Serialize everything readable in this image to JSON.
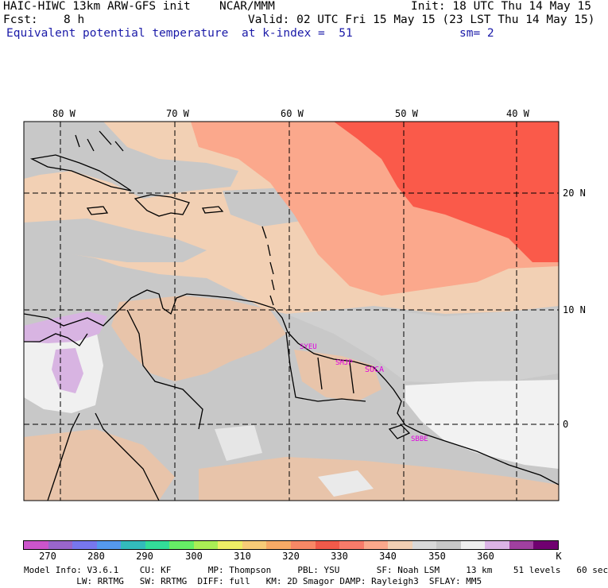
{
  "header": {
    "model": "HAIC-HIWC 13km ARW-GFS init",
    "org": "NCAR/MMM",
    "init": "Init: 18 UTC Thu 14 May 15",
    "fcst_label": "Fcst:",
    "fcst_value": "8 h",
    "valid": "Valid: 02 UTC Fri 15 May 15 (23 LST Thu 14 May 15)",
    "field": "Equivalent potential temperature",
    "level": "at k-index =  51",
    "smooth": "sm= 2"
  },
  "map": {
    "lon_labels": [
      "80 W",
      "70 W",
      "60 W",
      "50 W",
      "40 W"
    ],
    "lat_labels": [
      "20 N",
      "10 N",
      "0"
    ],
    "stations": [
      "SYEU",
      "SMJP",
      "SOCA",
      "SBBE"
    ],
    "colors": {
      "land_gray": "#c8c8c8",
      "tan": "#f2d0b4",
      "salmon": "#fba88c",
      "red": "#fa5a4a",
      "white": "#f2f2f2",
      "lavender": "#d8b4e2",
      "station": "#e000e0"
    }
  },
  "colorbar": {
    "colors": [
      "#cc55cc",
      "#9966cc",
      "#7777ee",
      "#5599ee",
      "#33bbbb",
      "#33dd99",
      "#66ee66",
      "#aaee55",
      "#eeee66",
      "#f8cc77",
      "#f8aa66",
      "#f88866",
      "#f05a4a",
      "#f77b6a",
      "#fba88c",
      "#f2d0b4",
      "#d9d9d9",
      "#c8c8c8",
      "#eeeeee",
      "#dcb4e6",
      "#a040a0",
      "#700070"
    ],
    "tick_labels": [
      "270",
      "280",
      "290",
      "300",
      "310",
      "320",
      "330",
      "340",
      "350",
      "360"
    ],
    "unit": "K"
  },
  "footer": {
    "line1": "Model Info: V3.6.1    CU: KF       MP: Thompson     PBL: YSU       SF: Noah LSM     13 km    51 levels   60 sec",
    "line2": "          LW: RRTMG   SW: RRTMG  DIFF: full   KM: 2D Smagor DAMP: Rayleigh3  SFLAY: MM5"
  }
}
